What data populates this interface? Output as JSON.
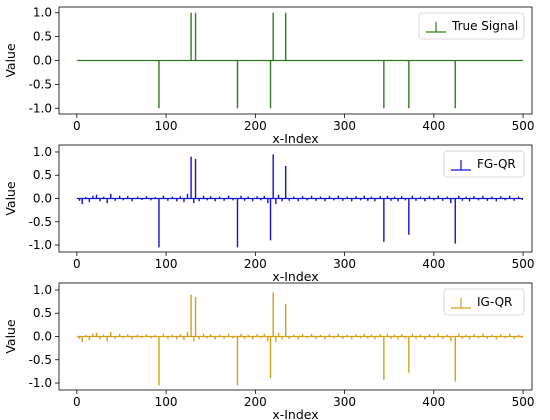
{
  "chart_data": [
    {
      "type": "stem",
      "ylabel": "Value",
      "xlabel": "x-Index",
      "xlim": [
        -20,
        510
      ],
      "ylim": [
        -1.12,
        1.12
      ],
      "xticks": [
        0,
        100,
        200,
        300,
        400,
        500
      ],
      "yticks": [
        -1.0,
        -0.5,
        0.0,
        0.5,
        1.0
      ],
      "legend": "top-right",
      "series": [
        {
          "name": "True Signal",
          "color": "#2e7d1e",
          "points": [
            [
              92,
              -1.0
            ],
            [
              128,
              1.0
            ],
            [
              133,
              1.0
            ],
            [
              180,
              -1.0
            ],
            [
              217,
              -1.0
            ],
            [
              220,
              1.0
            ],
            [
              234,
              1.0
            ],
            [
              344,
              -1.0
            ],
            [
              372,
              -1.0
            ],
            [
              424,
              -1.0
            ]
          ]
        }
      ]
    },
    {
      "type": "stem",
      "ylabel": "Value",
      "xlabel": "x-Index",
      "xlim": [
        -20,
        510
      ],
      "ylim": [
        -1.15,
        1.15
      ],
      "xticks": [
        0,
        100,
        200,
        300,
        400,
        500
      ],
      "yticks": [
        -1.0,
        -0.5,
        0.0,
        0.5,
        1.0
      ],
      "legend": "top-right",
      "series": [
        {
          "name": "FG-QR",
          "color": "#1010d0",
          "points": [
            [
              3,
              -0.05
            ],
            [
              6,
              -0.12
            ],
            [
              10,
              0.03
            ],
            [
              14,
              -0.08
            ],
            [
              18,
              0.06
            ],
            [
              22,
              0.08
            ],
            [
              26,
              -0.06
            ],
            [
              30,
              0.04
            ],
            [
              34,
              -0.1
            ],
            [
              38,
              0.1
            ],
            [
              43,
              -0.05
            ],
            [
              48,
              0.06
            ],
            [
              52,
              -0.04
            ],
            [
              57,
              0.05
            ],
            [
              62,
              -0.06
            ],
            [
              68,
              0.04
            ],
            [
              73,
              -0.03
            ],
            [
              78,
              0.05
            ],
            [
              83,
              -0.04
            ],
            [
              88,
              0.03
            ],
            [
              92,
              -1.05
            ],
            [
              97,
              0.06
            ],
            [
              102,
              -0.05
            ],
            [
              107,
              0.04
            ],
            [
              112,
              -0.06
            ],
            [
              116,
              0.05
            ],
            [
              120,
              -0.08
            ],
            [
              124,
              0.1
            ],
            [
              128,
              0.9
            ],
            [
              131,
              -0.1
            ],
            [
              133,
              0.85
            ],
            [
              137,
              -0.06
            ],
            [
              142,
              0.06
            ],
            [
              146,
              -0.04
            ],
            [
              150,
              0.05
            ],
            [
              155,
              -0.06
            ],
            [
              160,
              0.04
            ],
            [
              165,
              -0.05
            ],
            [
              170,
              0.06
            ],
            [
              175,
              -0.04
            ],
            [
              180,
              -1.05
            ],
            [
              184,
              0.06
            ],
            [
              188,
              -0.05
            ],
            [
              192,
              0.04
            ],
            [
              197,
              -0.06
            ],
            [
              202,
              0.05
            ],
            [
              206,
              -0.04
            ],
            [
              210,
              0.06
            ],
            [
              214,
              -0.1
            ],
            [
              217,
              -0.9
            ],
            [
              220,
              0.95
            ],
            [
              223,
              -0.12
            ],
            [
              226,
              0.08
            ],
            [
              230,
              -0.06
            ],
            [
              234,
              0.7
            ],
            [
              238,
              -0.05
            ],
            [
              243,
              0.04
            ],
            [
              248,
              -0.06
            ],
            [
              253,
              0.05
            ],
            [
              258,
              -0.04
            ],
            [
              263,
              0.06
            ],
            [
              268,
              -0.05
            ],
            [
              273,
              0.04
            ],
            [
              278,
              -0.06
            ],
            [
              283,
              0.05
            ],
            [
              288,
              -0.04
            ],
            [
              293,
              0.06
            ],
            [
              298,
              -0.05
            ],
            [
              303,
              0.04
            ],
            [
              308,
              -0.06
            ],
            [
              313,
              0.05
            ],
            [
              318,
              -0.04
            ],
            [
              322,
              0.06
            ],
            [
              326,
              -0.05
            ],
            [
              330,
              0.04
            ],
            [
              334,
              -0.06
            ],
            [
              340,
              0.05
            ],
            [
              344,
              -0.93
            ],
            [
              348,
              0.06
            ],
            [
              352,
              -0.05
            ],
            [
              356,
              0.04
            ],
            [
              360,
              -0.06
            ],
            [
              364,
              0.05
            ],
            [
              368,
              -0.04
            ],
            [
              372,
              -0.78
            ],
            [
              376,
              0.06
            ],
            [
              380,
              -0.05
            ],
            [
              385,
              0.04
            ],
            [
              390,
              -0.06
            ],
            [
              395,
              0.05
            ],
            [
              400,
              -0.04
            ],
            [
              405,
              0.06
            ],
            [
              410,
              -0.05
            ],
            [
              415,
              0.04
            ],
            [
              419,
              -0.1
            ],
            [
              424,
              -0.97
            ],
            [
              428,
              0.06
            ],
            [
              432,
              -0.05
            ],
            [
              436,
              0.04
            ],
            [
              440,
              -0.06
            ],
            [
              445,
              0.05
            ],
            [
              450,
              -0.04
            ],
            [
              455,
              0.06
            ],
            [
              460,
              -0.05
            ],
            [
              465,
              0.04
            ],
            [
              470,
              -0.06
            ],
            [
              475,
              0.05
            ],
            [
              480,
              -0.04
            ],
            [
              485,
              0.06
            ],
            [
              490,
              -0.05
            ],
            [
              495,
              0.04
            ],
            [
              499,
              -0.03
            ]
          ]
        }
      ]
    },
    {
      "type": "stem",
      "ylabel": "Value",
      "xlabel": "x-Index",
      "xlim": [
        -20,
        510
      ],
      "ylim": [
        -1.15,
        1.15
      ],
      "xticks": [
        0,
        100,
        200,
        300,
        400,
        500
      ],
      "yticks": [
        -1.0,
        -0.5,
        0.0,
        0.5,
        1.0
      ],
      "legend": "top-right",
      "series": [
        {
          "name": "IG-QR",
          "color": "#d4a017",
          "points": [
            [
              3,
              -0.05
            ],
            [
              6,
              -0.12
            ],
            [
              10,
              0.03
            ],
            [
              14,
              -0.08
            ],
            [
              18,
              0.06
            ],
            [
              22,
              0.08
            ],
            [
              26,
              -0.06
            ],
            [
              30,
              0.04
            ],
            [
              34,
              -0.1
            ],
            [
              38,
              0.1
            ],
            [
              43,
              -0.05
            ],
            [
              48,
              0.06
            ],
            [
              52,
              -0.04
            ],
            [
              57,
              0.05
            ],
            [
              62,
              -0.06
            ],
            [
              68,
              0.04
            ],
            [
              73,
              -0.03
            ],
            [
              78,
              0.05
            ],
            [
              83,
              -0.04
            ],
            [
              88,
              0.03
            ],
            [
              92,
              -1.05
            ],
            [
              97,
              0.06
            ],
            [
              102,
              -0.05
            ],
            [
              107,
              0.04
            ],
            [
              112,
              -0.06
            ],
            [
              116,
              0.05
            ],
            [
              120,
              -0.08
            ],
            [
              124,
              0.1
            ],
            [
              128,
              0.9
            ],
            [
              131,
              -0.1
            ],
            [
              133,
              0.85
            ],
            [
              137,
              -0.06
            ],
            [
              142,
              0.06
            ],
            [
              146,
              -0.04
            ],
            [
              150,
              0.05
            ],
            [
              155,
              -0.06
            ],
            [
              160,
              0.04
            ],
            [
              165,
              -0.05
            ],
            [
              170,
              0.06
            ],
            [
              175,
              -0.04
            ],
            [
              180,
              -1.05
            ],
            [
              184,
              0.06
            ],
            [
              188,
              -0.05
            ],
            [
              192,
              0.04
            ],
            [
              197,
              -0.06
            ],
            [
              202,
              0.05
            ],
            [
              206,
              -0.04
            ],
            [
              210,
              0.06
            ],
            [
              214,
              -0.1
            ],
            [
              217,
              -0.9
            ],
            [
              220,
              0.95
            ],
            [
              223,
              -0.12
            ],
            [
              226,
              0.08
            ],
            [
              230,
              -0.06
            ],
            [
              234,
              0.7
            ],
            [
              238,
              -0.05
            ],
            [
              243,
              0.04
            ],
            [
              248,
              -0.06
            ],
            [
              253,
              0.05
            ],
            [
              258,
              -0.04
            ],
            [
              263,
              0.06
            ],
            [
              268,
              -0.05
            ],
            [
              273,
              0.04
            ],
            [
              278,
              -0.06
            ],
            [
              283,
              0.05
            ],
            [
              288,
              -0.04
            ],
            [
              293,
              0.06
            ],
            [
              298,
              -0.05
            ],
            [
              303,
              0.04
            ],
            [
              308,
              -0.06
            ],
            [
              313,
              0.05
            ],
            [
              318,
              -0.04
            ],
            [
              322,
              0.06
            ],
            [
              326,
              -0.05
            ],
            [
              330,
              0.04
            ],
            [
              334,
              -0.06
            ],
            [
              340,
              0.05
            ],
            [
              344,
              -0.93
            ],
            [
              348,
              0.06
            ],
            [
              352,
              -0.05
            ],
            [
              356,
              0.04
            ],
            [
              360,
              -0.06
            ],
            [
              364,
              0.05
            ],
            [
              368,
              -0.04
            ],
            [
              372,
              -0.78
            ],
            [
              376,
              0.06
            ],
            [
              380,
              -0.05
            ],
            [
              385,
              0.04
            ],
            [
              390,
              -0.06
            ],
            [
              395,
              0.05
            ],
            [
              400,
              -0.04
            ],
            [
              405,
              0.06
            ],
            [
              410,
              -0.05
            ],
            [
              415,
              0.04
            ],
            [
              419,
              -0.1
            ],
            [
              424,
              -0.97
            ],
            [
              428,
              0.06
            ],
            [
              432,
              -0.05
            ],
            [
              436,
              0.04
            ],
            [
              440,
              -0.06
            ],
            [
              445,
              0.05
            ],
            [
              450,
              -0.04
            ],
            [
              455,
              0.06
            ],
            [
              460,
              -0.05
            ],
            [
              465,
              0.04
            ],
            [
              470,
              -0.06
            ],
            [
              475,
              0.05
            ],
            [
              480,
              -0.04
            ],
            [
              485,
              0.06
            ],
            [
              490,
              -0.05
            ],
            [
              495,
              0.04
            ],
            [
              499,
              -0.03
            ]
          ]
        }
      ]
    }
  ]
}
